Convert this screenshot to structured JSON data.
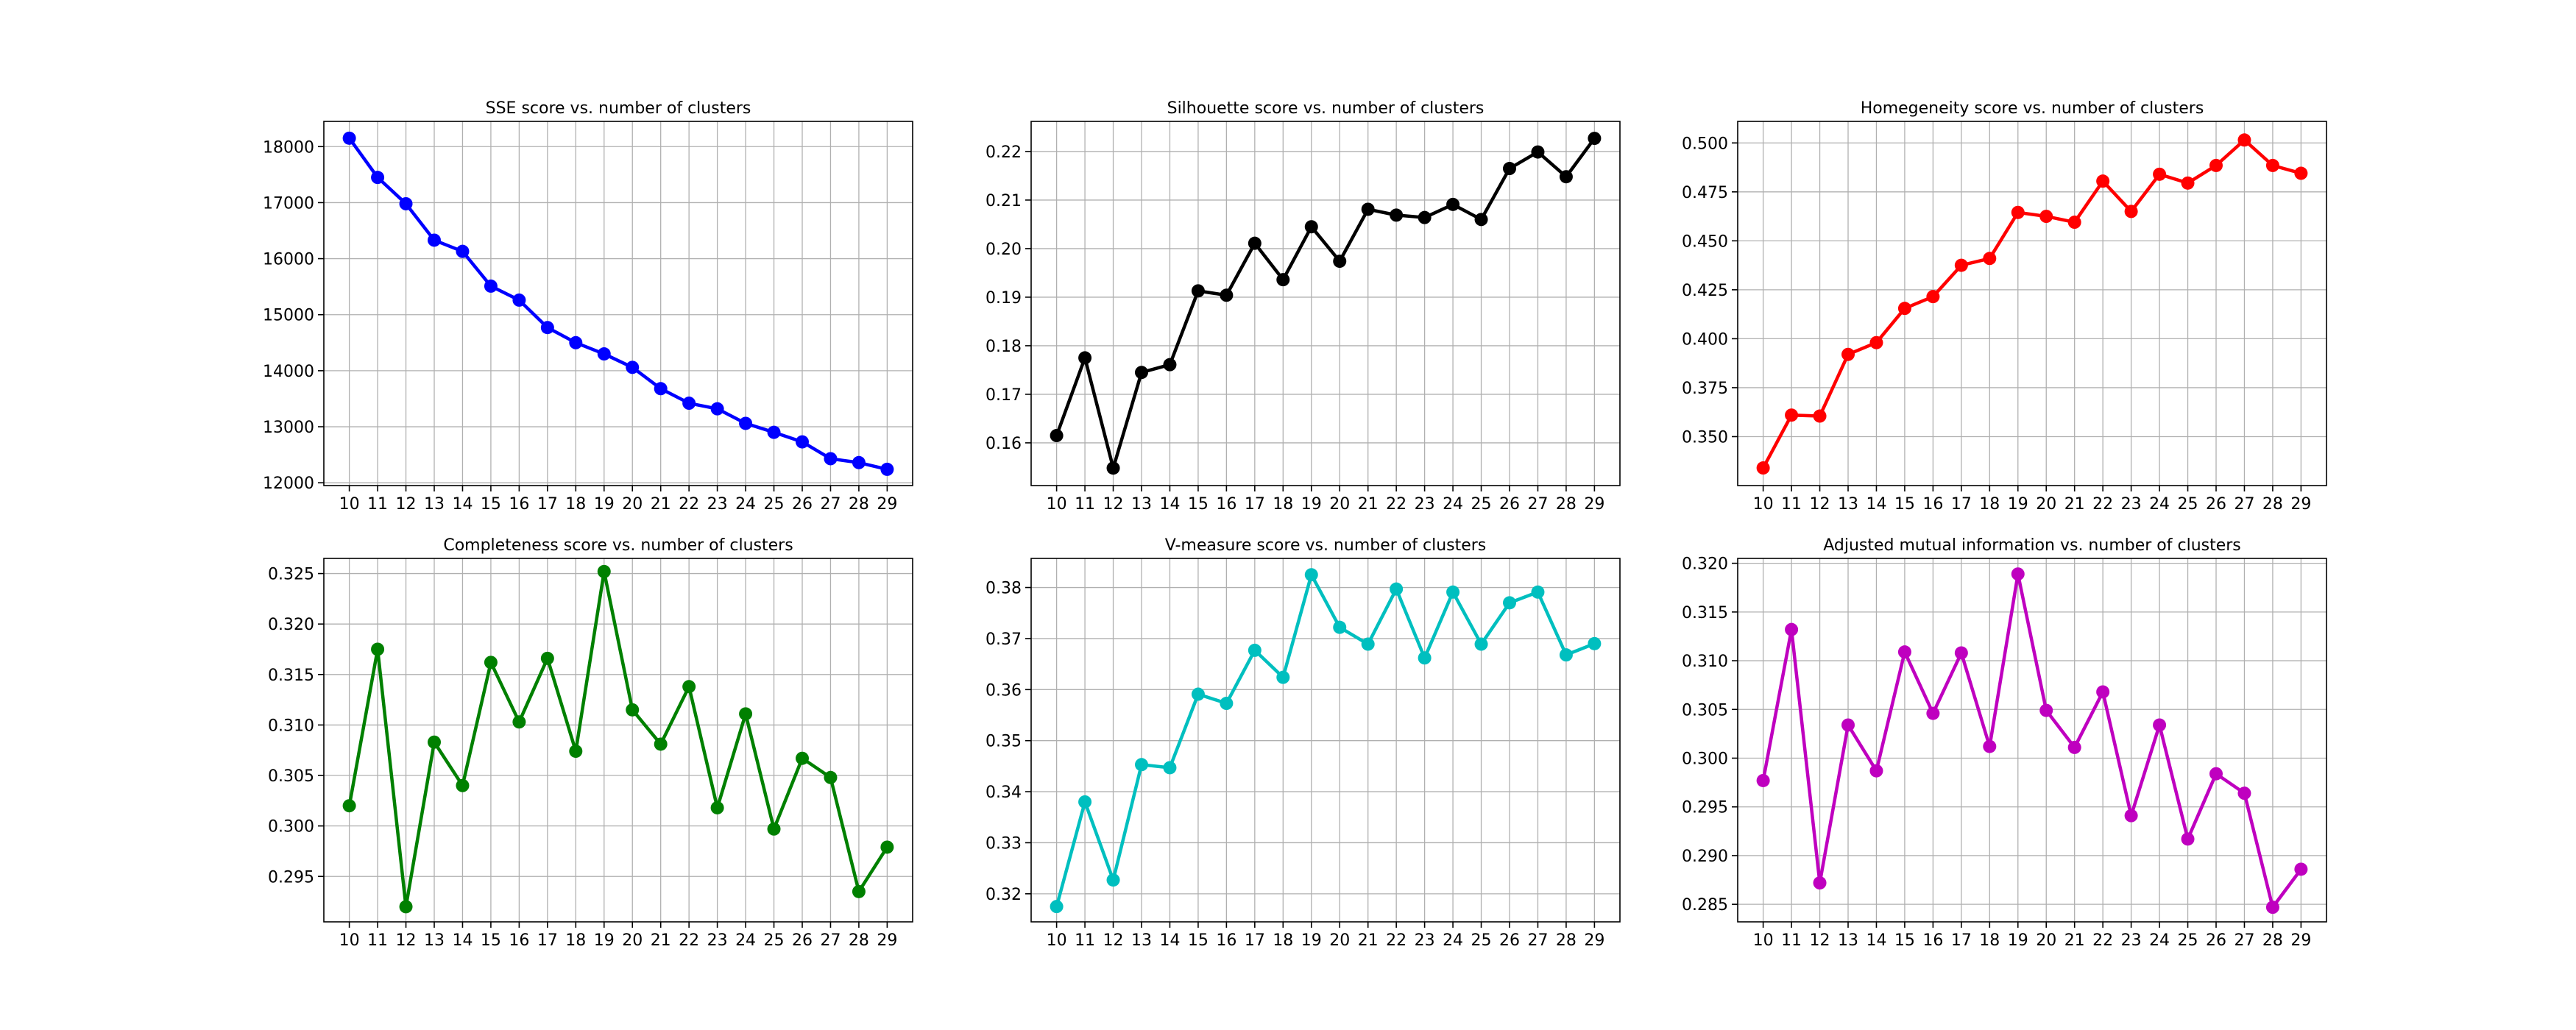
{
  "chart_data": [
    {
      "type": "line",
      "title": "SSE score vs. number of clusters",
      "color": "#0000ff",
      "x": [
        10,
        11,
        12,
        13,
        14,
        15,
        16,
        17,
        18,
        19,
        20,
        21,
        22,
        23,
        24,
        25,
        26,
        27,
        28,
        29
      ],
      "values": [
        18150,
        17450,
        16980,
        16330,
        16130,
        15510,
        15260,
        14770,
        14500,
        14300,
        14060,
        13680,
        13420,
        13320,
        13060,
        12900,
        12730,
        12430,
        12360,
        12240
      ],
      "xlim": [
        9.1,
        29.9
      ],
      "ylim": [
        11950,
        18450
      ],
      "yticks": [
        12000,
        13000,
        14000,
        15000,
        16000,
        17000,
        18000
      ],
      "ytick_labels": [
        "12000",
        "13000",
        "14000",
        "15000",
        "16000",
        "17000",
        "18000"
      ],
      "xlabel": "",
      "ylabel": "",
      "grid": true
    },
    {
      "type": "line",
      "title": "Silhouette score vs. number of clusters",
      "color": "#000000",
      "x": [
        10,
        11,
        12,
        13,
        14,
        15,
        16,
        17,
        18,
        19,
        20,
        21,
        22,
        23,
        24,
        25,
        26,
        27,
        28,
        29
      ],
      "values": [
        0.1615,
        0.1775,
        0.1548,
        0.1745,
        0.1761,
        0.1913,
        0.1904,
        0.2011,
        0.1936,
        0.2045,
        0.1974,
        0.2081,
        0.2069,
        0.2064,
        0.2091,
        0.206,
        0.2165,
        0.2199,
        0.2148,
        0.2227
      ],
      "xlim": [
        9.1,
        29.9
      ],
      "ylim": [
        0.1512,
        0.2262
      ],
      "yticks": [
        0.16,
        0.17,
        0.18,
        0.19,
        0.2,
        0.21,
        0.22
      ],
      "ytick_labels": [
        "0.16",
        "0.17",
        "0.18",
        "0.19",
        "0.20",
        "0.21",
        "0.22"
      ],
      "xlabel": "",
      "ylabel": "",
      "grid": true
    },
    {
      "type": "line",
      "title": "Homegeneity score vs. number of clusters",
      "color": "#ff0000",
      "x": [
        10,
        11,
        12,
        13,
        14,
        15,
        16,
        17,
        18,
        19,
        20,
        21,
        22,
        23,
        24,
        25,
        26,
        27,
        28,
        29
      ],
      "values": [
        0.334,
        0.361,
        0.3605,
        0.392,
        0.398,
        0.4155,
        0.4215,
        0.4375,
        0.441,
        0.4645,
        0.4625,
        0.4595,
        0.4805,
        0.465,
        0.484,
        0.4795,
        0.4885,
        0.5015,
        0.4885,
        0.4845
      ],
      "xlim": [
        9.1,
        29.9
      ],
      "ylim": [
        0.325,
        0.511
      ],
      "yticks": [
        0.35,
        0.375,
        0.4,
        0.425,
        0.45,
        0.475,
        0.5
      ],
      "ytick_labels": [
        "0.350",
        "0.375",
        "0.400",
        "0.425",
        "0.450",
        "0.475",
        "0.500"
      ],
      "xlabel": "",
      "ylabel": "",
      "grid": true
    },
    {
      "type": "line",
      "title": "Completeness score vs. number of clusters",
      "color": "#008000",
      "x": [
        10,
        11,
        12,
        13,
        14,
        15,
        16,
        17,
        18,
        19,
        20,
        21,
        22,
        23,
        24,
        25,
        26,
        27,
        28,
        29
      ],
      "values": [
        0.302,
        0.3175,
        0.292,
        0.3083,
        0.304,
        0.3162,
        0.3103,
        0.3166,
        0.3074,
        0.3252,
        0.3115,
        0.3081,
        0.3138,
        0.3018,
        0.3111,
        0.2997,
        0.3067,
        0.3048,
        0.2935,
        0.2979
      ],
      "xlim": [
        9.1,
        29.9
      ],
      "ylim": [
        0.2905,
        0.3265
      ],
      "yticks": [
        0.295,
        0.3,
        0.305,
        0.31,
        0.315,
        0.32,
        0.325
      ],
      "ytick_labels": [
        "0.295",
        "0.300",
        "0.305",
        "0.310",
        "0.315",
        "0.320",
        "0.325"
      ],
      "xlabel": "",
      "ylabel": "",
      "grid": true
    },
    {
      "type": "line",
      "title": "V-measure score vs. number of clusters",
      "color": "#00bfbf",
      "x": [
        10,
        11,
        12,
        13,
        14,
        15,
        16,
        17,
        18,
        19,
        20,
        21,
        22,
        23,
        24,
        25,
        26,
        27,
        28,
        29
      ],
      "values": [
        0.3175,
        0.338,
        0.3227,
        0.3453,
        0.3447,
        0.3591,
        0.3573,
        0.3677,
        0.3624,
        0.3825,
        0.3722,
        0.3689,
        0.3797,
        0.3662,
        0.3791,
        0.3689,
        0.377,
        0.3791,
        0.3668,
        0.369
      ],
      "xlim": [
        9.1,
        29.9
      ],
      "ylim": [
        0.3145,
        0.3857
      ],
      "yticks": [
        0.32,
        0.33,
        0.34,
        0.35,
        0.36,
        0.37,
        0.38
      ],
      "ytick_labels": [
        "0.32",
        "0.33",
        "0.34",
        "0.35",
        "0.36",
        "0.37",
        "0.38"
      ],
      "xlabel": "",
      "ylabel": "",
      "grid": true
    },
    {
      "type": "line",
      "title": "Adjusted mutual information vs. number of clusters",
      "color": "#bf00bf",
      "x": [
        10,
        11,
        12,
        13,
        14,
        15,
        16,
        17,
        18,
        19,
        20,
        21,
        22,
        23,
        24,
        25,
        26,
        27,
        28,
        29
      ],
      "values": [
        0.2977,
        0.3132,
        0.2872,
        0.3034,
        0.2987,
        0.3109,
        0.3046,
        0.3108,
        0.3012,
        0.3189,
        0.3049,
        0.3011,
        0.3068,
        0.2941,
        0.3034,
        0.2917,
        0.2984,
        0.2964,
        0.2847,
        0.2886
      ],
      "xlim": [
        9.1,
        29.9
      ],
      "ylim": [
        0.2832,
        0.3205
      ],
      "yticks": [
        0.285,
        0.29,
        0.295,
        0.3,
        0.305,
        0.31,
        0.315,
        0.32
      ],
      "ytick_labels": [
        "0.285",
        "0.290",
        "0.295",
        "0.300",
        "0.305",
        "0.310",
        "0.315",
        "0.320"
      ],
      "xlabel": "",
      "ylabel": "",
      "grid": true
    }
  ]
}
